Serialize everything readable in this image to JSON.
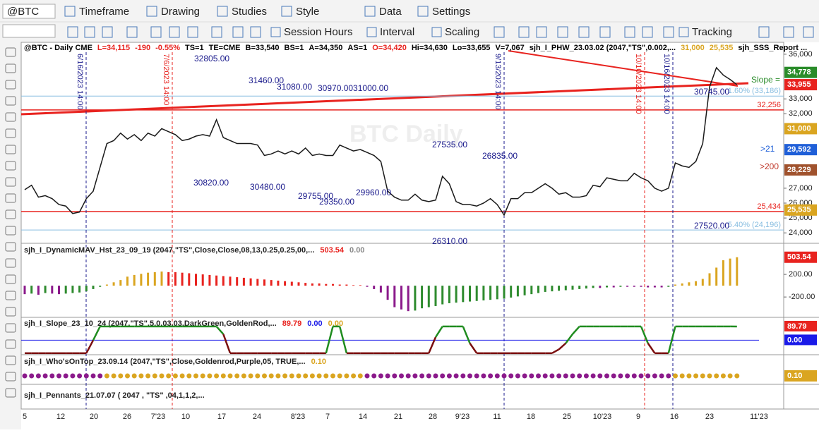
{
  "toolbar": {
    "symbol": "@BTC",
    "row1": [
      "Timeframe",
      "Drawing",
      "Studies",
      "Style",
      "Data",
      "Settings"
    ],
    "row2": [
      "Session Hours",
      "Interval",
      "Scaling",
      "Tracking"
    ]
  },
  "header": [
    {
      "text": "@BTC - Daily  CME",
      "color": "#000000"
    },
    {
      "text": "L=34,115",
      "color": "#e8231f"
    },
    {
      "text": "-190",
      "color": "#e8231f"
    },
    {
      "text": "-0.55%",
      "color": "#e8231f"
    },
    {
      "text": "TS=1",
      "color": "#000000"
    },
    {
      "text": "TE=CME",
      "color": "#000000"
    },
    {
      "text": "B=33,540",
      "color": "#000000"
    },
    {
      "text": "BS=1",
      "color": "#000000"
    },
    {
      "text": "A=34,350",
      "color": "#000000"
    },
    {
      "text": "AS=1",
      "color": "#000000"
    },
    {
      "text": "O=34,420",
      "color": "#e8231f"
    },
    {
      "text": "Hi=34,630",
      "color": "#000000"
    },
    {
      "text": "Lo=33,655",
      "color": "#000000"
    },
    {
      "text": "V=7,067",
      "color": "#000000"
    },
    {
      "text": "sjh_I_PHW_23.03.02 (2047,\"TS\",0.002,...",
      "color": "#000000"
    },
    {
      "text": "31,000",
      "color": "#daa520"
    },
    {
      "text": "25,535",
      "color": "#daa520"
    },
    {
      "text": "sjh_SSS_Report ...",
      "color": "#000000"
    }
  ],
  "price": {
    "ylim": [
      23300,
      36800
    ],
    "yticks": [
      {
        "value": 36000,
        "label": "36,000"
      },
      {
        "value": 33000,
        "label": "33,000"
      },
      {
        "value": 32000,
        "label": "32,000"
      },
      {
        "value": 27000,
        "label": "27,000"
      },
      {
        "value": 26000,
        "label": "26,000"
      },
      {
        "value": 25000,
        "label": "25,000"
      },
      {
        "value": 24000,
        "label": "24,000"
      }
    ],
    "color": "#1a1a1a",
    "closes": [
      26900,
      27200,
      26400,
      26500,
      26300,
      25900,
      25800,
      25300,
      25400,
      26300,
      26800,
      28400,
      30000,
      30200,
      30700,
      30300,
      30600,
      30200,
      30700,
      30500,
      31000,
      30800,
      30600,
      30200,
      30300,
      30500,
      30600,
      30500,
      31600,
      30400,
      30200,
      30000,
      30000,
      30000,
      29900,
      29200,
      29300,
      29500,
      29300,
      29500,
      29300,
      29700,
      29200,
      29300,
      29200,
      29200,
      29900,
      29700,
      29500,
      29600,
      29400,
      29200,
      28800,
      26800,
      26400,
      26200,
      26200,
      26600,
      26200,
      26100,
      26200,
      27800,
      27300,
      26100,
      25900,
      25900,
      25800,
      26000,
      26300,
      25900,
      25200,
      26300,
      26300,
      26700,
      26700,
      27000,
      27300,
      27000,
      26600,
      26700,
      26400,
      26400,
      26500,
      27200,
      27100,
      27700,
      27600,
      27500,
      27500,
      28000,
      27700,
      27500,
      27000,
      26800,
      27000,
      28700,
      28500,
      28400,
      28800,
      30000,
      33800,
      35100,
      34600,
      34300,
      33955
    ],
    "level_lines": [
      {
        "value": 32256,
        "label": "32,256",
        "color": "#e8231f"
      },
      {
        "value": 25434,
        "label": "25,434",
        "color": "#e8231f"
      },
      {
        "value": 33186,
        "label": "1.60% (33,186)",
        "color": "#87bde0"
      },
      {
        "value": 24196,
        "label": "5.40% (24,196)",
        "color": "#87bde0"
      }
    ],
    "badges": [
      {
        "value": 34778,
        "label": "34,778",
        "color": "#2a8c2a"
      },
      {
        "value": 33955,
        "label": "33,955",
        "color": "#e8231f"
      },
      {
        "value": 31000,
        "label": "31,000",
        "color": "#daa520"
      },
      {
        "value": 29592,
        "label": "29,592",
        "color": "#1f5fd8"
      },
      {
        "value": 28229,
        "label": "28,229",
        "color": "#a0522d"
      },
      {
        "value": 25535,
        "label": "25,535",
        "color": "#daa520"
      }
    ],
    "annotations": [
      "32805.00",
      "31460.00",
      "31080.00",
      "30970.0031000.00",
      "30745.00",
      "27535.00",
      "26835.00",
      "30820.00",
      "30480.00",
      "29755.00",
      "29350.00",
      "29960.00",
      "27520.00",
      "26310.00"
    ],
    "side_labels": [
      {
        "text": "Slope =",
        "color": "#2a8c2a"
      },
      {
        "text": ">21",
        "color": "#1f5fd8"
      },
      {
        "text": ">200",
        "color": "#c0392b"
      }
    ],
    "date_lines": [
      {
        "text": "6/16/2023 14:00",
        "color": "#1a1a8c"
      },
      {
        "text": "7/6/2023 14:00",
        "color": "#e8231f"
      },
      {
        "text": "9/13/2023 14:00",
        "color": "#1a1a8c"
      },
      {
        "text": "10/10/2023 14:00",
        "color": "#e8231f"
      },
      {
        "text": "10/16/2023 14:00",
        "color": "#1a1a8c"
      }
    ]
  },
  "histogram": {
    "title": "sjh_I_DynamicMAV_Hst_23_09_19 (2047,\"TS\",Close,Close,08,13,0.25,0.25,00,...",
    "readouts": [
      {
        "text": "503.54",
        "color": "#e8231f"
      },
      {
        "text": "0.00",
        "color": "#888888"
      }
    ],
    "ylim": [
      -560,
      750
    ],
    "yticks": [
      {
        "value": 200,
        "label": "200.00"
      },
      {
        "value": -200,
        "label": "-200.00"
      }
    ],
    "badge": {
      "value": 503.54,
      "label": "503.54",
      "color": "#e8231f"
    },
    "colors": {
      "pos_up": "#daa520",
      "pos_down": "#e8231f",
      "neg_down": "#8b1a8b",
      "neg_up": "#2e8b2e"
    },
    "values": [
      -150,
      -140,
      -160,
      -130,
      -140,
      -150,
      -140,
      -130,
      -120,
      -100,
      -60,
      -20,
      20,
      60,
      100,
      160,
      190,
      210,
      230,
      240,
      250,
      240,
      240,
      230,
      220,
      210,
      200,
      190,
      180,
      170,
      160,
      150,
      140,
      130,
      120,
      110,
      100,
      90,
      80,
      70,
      60,
      50,
      40,
      40,
      30,
      30,
      20,
      20,
      10,
      10,
      -20,
      -60,
      -120,
      -250,
      -380,
      -420,
      -450,
      -440,
      -400,
      -380,
      -360,
      -330,
      -310,
      -300,
      -290,
      -280,
      -270,
      -260,
      -250,
      -240,
      -230,
      -210,
      -190,
      -170,
      -150,
      -130,
      -110,
      -100,
      -90,
      -80,
      -70,
      -60,
      -50,
      -40,
      -40,
      -30,
      -30,
      -20,
      -20,
      -20,
      -20,
      -30,
      -30,
      -30,
      -20,
      20,
      40,
      60,
      80,
      120,
      220,
      320,
      450,
      480,
      503.54
    ]
  },
  "slope": {
    "title": "sjh_I_Slope_23_10_24 (2047,\"TS\",5,0,03,03,DarkGreen,GoldenRod,...",
    "readouts": [
      {
        "text": "89.79",
        "color": "#e8231f"
      },
      {
        "text": "0.00",
        "color": "#1a1ae8"
      },
      {
        "text": "0.00",
        "color": "#daa520"
      }
    ],
    "ylim": [
      -95,
      145
    ],
    "baseline": {
      "value": 0,
      "color": "#1a1ae8"
    },
    "colors": {
      "up": "#1f8c1f",
      "down": "#7a0e0e"
    },
    "badges": [
      {
        "value": 89.79,
        "label": "89.79",
        "color": "#e8231f"
      },
      {
        "value": 0,
        "label": "0.00",
        "color": "#1a1ae8"
      }
    ],
    "values": [
      -85,
      -85,
      -85,
      -85,
      -85,
      -85,
      -85,
      -85,
      -85,
      -85,
      0,
      90,
      90,
      90,
      90,
      90,
      90,
      90,
      90,
      90,
      90,
      90,
      90,
      90,
      90,
      90,
      90,
      90,
      90,
      40,
      -85,
      -85,
      -85,
      -85,
      -85,
      -85,
      -85,
      -85,
      -85,
      -85,
      -85,
      -85,
      -85,
      -85,
      -85,
      90,
      90,
      -85,
      -85,
      -85,
      -85,
      -85,
      -85,
      -85,
      -85,
      -85,
      -85,
      -85,
      -85,
      -85,
      20,
      90,
      90,
      90,
      90,
      -20,
      -85,
      -85,
      -85,
      -85,
      -85,
      -85,
      -85,
      -85,
      -85,
      -85,
      -85,
      -85,
      -60,
      -20,
      40,
      90,
      90,
      90,
      90,
      90,
      90,
      90,
      90,
      90,
      90,
      -20,
      -85,
      -85,
      -85,
      90,
      90,
      90,
      90,
      90,
      90,
      90,
      90,
      90,
      89.79
    ]
  },
  "whos_on_top": {
    "title": "sjh_I_Who'sOnTop_23.09.14 (2047,\"TS\",Close,Goldenrod,Purple,05,  TRUE,...",
    "readout": {
      "text": "0.10",
      "color": "#daa520"
    },
    "badge": {
      "label": "0.10",
      "color": "#daa520"
    }
  },
  "pennants": {
    "title": "sjh_I_Pennants_21.07.07 (  2047 ,  \"TS\" ,04,1,1,2,..."
  },
  "x_axis": [
    "5",
    "12",
    "20",
    "26",
    "7'23",
    "10",
    "17",
    "24",
    "8'23",
    "7",
    "14",
    "21",
    "28",
    "9'23",
    "11",
    "18",
    "25",
    "10'23",
    "9",
    "16",
    "23",
    "11'23"
  ]
}
